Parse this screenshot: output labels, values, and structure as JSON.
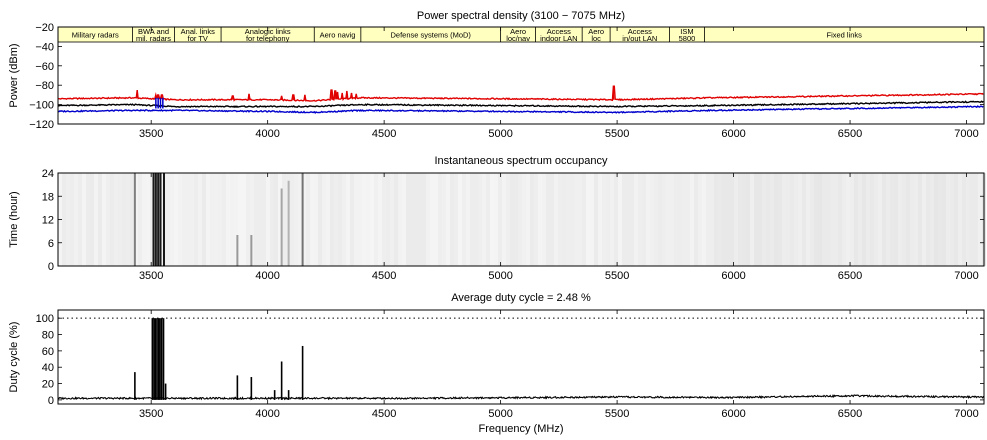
{
  "chart_data": [
    {
      "type": "line",
      "title": "Power spectral density (3100 − 7075 MHz)",
      "xlabel": "",
      "ylabel": "Power (dBm)",
      "xlim": [
        3100,
        7075
      ],
      "ylim": [
        -120,
        -20
      ],
      "x_ticks": [
        3500,
        4000,
        4500,
        5000,
        5500,
        6000,
        6500,
        7000
      ],
      "y_ticks": [
        -20,
        -40,
        -60,
        -80,
        -100,
        -120
      ],
      "band_allocations": [
        {
          "label": [
            "Military radars"
          ],
          "start": 3100,
          "end": 3420
        },
        {
          "label": [
            "BWA and",
            "mil. radars"
          ],
          "start": 3420,
          "end": 3600
        },
        {
          "label": [
            "Anal. links",
            "for TV"
          ],
          "start": 3600,
          "end": 3800
        },
        {
          "label": [
            "Analogic links",
            "for telephony"
          ],
          "start": 3800,
          "end": 4200
        },
        {
          "label": [
            "Aero navig"
          ],
          "start": 4200,
          "end": 4400
        },
        {
          "label": [
            "Defense systems (MoD)"
          ],
          "start": 4400,
          "end": 5000
        },
        {
          "label": [
            "Aero",
            "loc/nav"
          ],
          "start": 5000,
          "end": 5150
        },
        {
          "label": [
            "Access",
            "indoor LAN"
          ],
          "start": 5150,
          "end": 5350
        },
        {
          "label": [
            "Aero",
            "loc"
          ],
          "start": 5350,
          "end": 5470
        },
        {
          "label": [
            "Access",
            "in/out LAN"
          ],
          "start": 5470,
          "end": 5725
        },
        {
          "label": [
            "ISM",
            "5800"
          ],
          "start": 5725,
          "end": 5875
        },
        {
          "label": [
            "Fixed links"
          ],
          "start": 5875,
          "end": 7075
        }
      ],
      "series": [
        {
          "color": "#e00000",
          "x": [
            3100,
            3420,
            3600,
            4000,
            4200,
            4400,
            5000,
            5500,
            5900,
            6500,
            7075
          ],
          "values": [
            -94,
            -93,
            -95,
            -95,
            -96,
            -93,
            -94,
            -95,
            -93,
            -91,
            -89
          ]
        },
        {
          "color": "#000000",
          "x": [
            3100,
            3420,
            3600,
            4000,
            4200,
            4400,
            5000,
            5500,
            5900,
            6500,
            7075
          ],
          "values": [
            -101,
            -100,
            -102,
            -102,
            -102,
            -100,
            -101,
            -102,
            -101,
            -99,
            -97
          ]
        },
        {
          "color": "#0000cc",
          "x": [
            3100,
            3420,
            3600,
            4000,
            4200,
            4400,
            5000,
            5500,
            5900,
            6500,
            7075
          ],
          "values": [
            -107,
            -106,
            -106,
            -107,
            -108,
            -106,
            -107,
            -108,
            -106,
            -104,
            -102
          ]
        }
      ],
      "peaks": [
        {
          "x": 3440,
          "value": -85
        },
        {
          "x": 3520,
          "value": -90
        },
        {
          "x": 3530,
          "value": -90
        },
        {
          "x": 3545,
          "value": -90
        },
        {
          "x": 3850,
          "value": -91
        },
        {
          "x": 3920,
          "value": -89
        },
        {
          "x": 4060,
          "value": -91
        },
        {
          "x": 4110,
          "value": -90
        },
        {
          "x": 4160,
          "value": -90
        },
        {
          "x": 4275,
          "value": -85
        },
        {
          "x": 4290,
          "value": -86
        },
        {
          "x": 4300,
          "value": -87
        },
        {
          "x": 4320,
          "value": -88
        },
        {
          "x": 4340,
          "value": -86
        },
        {
          "x": 4360,
          "value": -88
        },
        {
          "x": 4380,
          "value": -89
        },
        {
          "x": 5485,
          "value": -81
        }
      ]
    },
    {
      "type": "heatmap",
      "title": "Instantaneous spectrum occupancy",
      "xlabel": "",
      "ylabel": "Time (hour)",
      "xlim": [
        3100,
        7075
      ],
      "ylim": [
        0,
        24
      ],
      "x_ticks": [
        3500,
        4000,
        4500,
        5000,
        5500,
        6000,
        6500,
        7000
      ],
      "y_ticks": [
        0,
        6,
        12,
        18,
        24
      ],
      "occupied_columns": [
        {
          "x": 3430,
          "hours": [
            0,
            24
          ],
          "intensity": 0.5
        },
        {
          "x": 3510,
          "hours": [
            0,
            24
          ],
          "intensity": 0.9
        },
        {
          "x": 3520,
          "hours": [
            0,
            24
          ],
          "intensity": 0.9
        },
        {
          "x": 3530,
          "hours": [
            0,
            24
          ],
          "intensity": 0.9
        },
        {
          "x": 3540,
          "hours": [
            0,
            24
          ],
          "intensity": 0.9
        },
        {
          "x": 3555,
          "hours": [
            0,
            24
          ],
          "intensity": 0.9
        },
        {
          "x": 3870,
          "hours": [
            0,
            8
          ],
          "intensity": 0.4
        },
        {
          "x": 3930,
          "hours": [
            0,
            8
          ],
          "intensity": 0.4
        },
        {
          "x": 4060,
          "hours": [
            0,
            20
          ],
          "intensity": 0.35
        },
        {
          "x": 4090,
          "hours": [
            0,
            22
          ],
          "intensity": 0.3
        },
        {
          "x": 4150,
          "hours": [
            0,
            24
          ],
          "intensity": 0.55
        }
      ]
    },
    {
      "type": "line",
      "title": "Average duty cycle = 2.48 %",
      "xlabel": "Frequency (MHz)",
      "ylabel": "Duty cycle (%)",
      "xlim": [
        3100,
        7075
      ],
      "ylim": [
        -5,
        110
      ],
      "x_ticks": [
        3500,
        4000,
        4500,
        5000,
        5500,
        6000,
        6500,
        7000
      ],
      "y_ticks": [
        0,
        20,
        40,
        60,
        80,
        100
      ],
      "reference_line": 100,
      "baseline": [
        {
          "x": 3100,
          "value": 1
        },
        {
          "x": 4600,
          "value": 1
        },
        {
          "x": 5500,
          "value": 2.5
        },
        {
          "x": 6000,
          "value": 2
        },
        {
          "x": 6500,
          "value": 4
        },
        {
          "x": 7075,
          "value": 2.5
        }
      ],
      "spikes": [
        {
          "x": 3430,
          "value": 34
        },
        {
          "x": 3505,
          "value": 100
        },
        {
          "x": 3512,
          "value": 100
        },
        {
          "x": 3518,
          "value": 100
        },
        {
          "x": 3525,
          "value": 100
        },
        {
          "x": 3532,
          "value": 100
        },
        {
          "x": 3538,
          "value": 100
        },
        {
          "x": 3545,
          "value": 100
        },
        {
          "x": 3553,
          "value": 100
        },
        {
          "x": 3562,
          "value": 20
        },
        {
          "x": 3870,
          "value": 30
        },
        {
          "x": 3930,
          "value": 28
        },
        {
          "x": 4030,
          "value": 12
        },
        {
          "x": 4060,
          "value": 47
        },
        {
          "x": 4090,
          "value": 12
        },
        {
          "x": 4150,
          "value": 66
        }
      ]
    }
  ]
}
